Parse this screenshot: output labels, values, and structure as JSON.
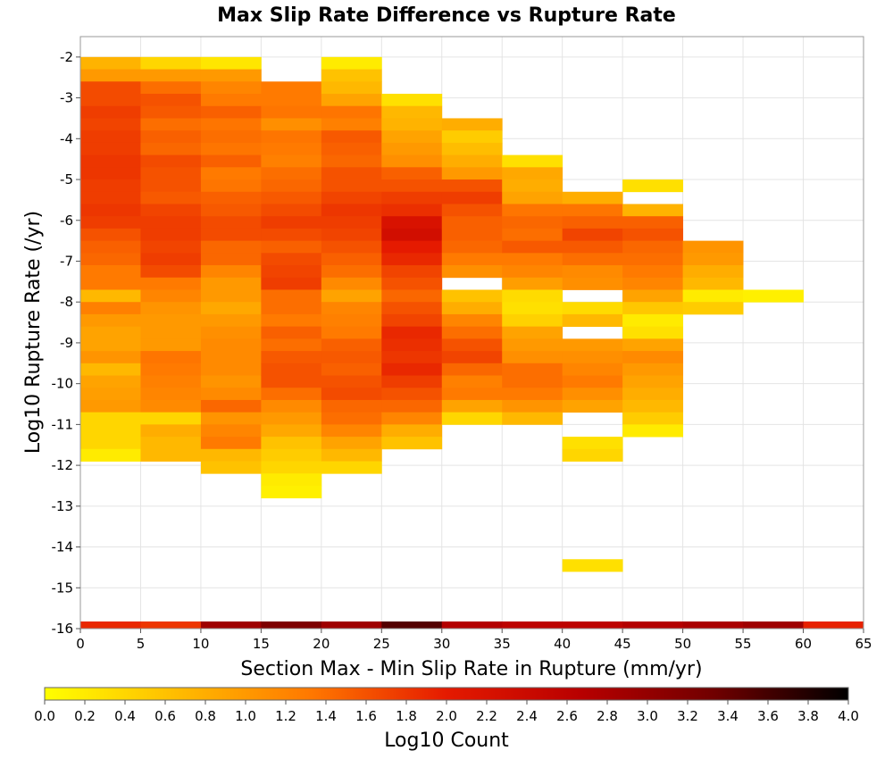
{
  "chart_data": {
    "type": "heatmap",
    "title": "Max Slip Rate Difference vs Rupture Rate",
    "xlabel": "Section Max - Min Slip Rate in Rupture (mm/yr)",
    "ylabel": "Log10 Rupture Rate (/yr)",
    "xlim": [
      0,
      65
    ],
    "ylim": [
      -16,
      -1.5
    ],
    "x_ticks": [
      "0",
      "5",
      "10",
      "15",
      "20",
      "25",
      "30",
      "35",
      "40",
      "45",
      "50",
      "55",
      "60",
      "65"
    ],
    "y_ticks": [
      "-2",
      "-3",
      "-4",
      "-5",
      "-6",
      "-7",
      "-8",
      "-9",
      "-10",
      "-11",
      "-12",
      "-13",
      "-14",
      "-15",
      "-16"
    ],
    "grid": true,
    "x_bin_width": 5,
    "y_bin_height": 0.3,
    "y_bin_start": -2.0,
    "colorbar": {
      "label": "Log10 Count",
      "min": 0.0,
      "max": 4.0,
      "ticks": [
        "0.0",
        "0.2",
        "0.4",
        "0.6",
        "0.8",
        "1.0",
        "1.2",
        "1.4",
        "1.6",
        "1.8",
        "2.0",
        "2.2",
        "2.4",
        "2.6",
        "2.8",
        "3.0",
        "3.2",
        "3.4",
        "3.6",
        "3.8",
        "4.0"
      ],
      "colors": [
        "#ffff00",
        "#ffbb00",
        "#ff7700",
        "#e51a00",
        "#b80000",
        "#700000",
        "#000000"
      ]
    },
    "columns": [
      [
        0.75,
        1.0,
        1.65,
        1.65,
        1.75,
        1.7,
        1.75,
        1.75,
        1.8,
        1.8,
        1.75,
        1.75,
        1.8,
        1.75,
        1.6,
        1.5,
        1.45,
        1.3,
        1.3,
        0.7,
        1.25,
        1.0,
        0.9,
        0.9,
        1.05,
        0.7,
        0.9,
        0.95,
        1.0,
        0.4,
        0.4,
        0.4,
        0.2
      ],
      [
        0.4,
        1.0,
        1.4,
        1.6,
        1.55,
        1.4,
        1.5,
        1.45,
        1.65,
        1.6,
        1.6,
        1.55,
        1.7,
        1.75,
        1.75,
        1.7,
        1.75,
        1.65,
        1.3,
        1.2,
        1.05,
        1.0,
        1.0,
        1.0,
        1.35,
        1.3,
        1.25,
        1.2,
        1.15,
        0.4,
        0.8,
        0.7,
        0.7
      ],
      [
        0.25,
        1.0,
        1.2,
        1.3,
        1.5,
        1.35,
        1.4,
        1.35,
        1.5,
        1.3,
        1.35,
        1.5,
        1.55,
        1.65,
        1.65,
        1.45,
        1.45,
        1.2,
        1.0,
        1.0,
        0.85,
        1.0,
        1.1,
        1.15,
        1.15,
        1.15,
        1.05,
        1.15,
        1.45,
        1.05,
        1.2,
        1.3,
        0.7,
        0.6
      ],
      [
        null,
        null,
        1.3,
        1.3,
        1.35,
        1.1,
        1.35,
        1.3,
        1.25,
        1.4,
        1.45,
        1.55,
        1.65,
        1.75,
        1.65,
        1.5,
        1.65,
        1.7,
        1.75,
        1.4,
        1.4,
        1.3,
        1.5,
        1.4,
        1.55,
        1.6,
        1.6,
        1.4,
        1.15,
        1.0,
        0.85,
        0.6,
        0.5,
        0.4,
        0.2,
        0.15
      ],
      [
        0.2,
        0.6,
        0.7,
        0.9,
        1.35,
        1.25,
        1.55,
        1.5,
        1.45,
        1.6,
        1.6,
        1.7,
        1.8,
        1.75,
        1.7,
        1.6,
        1.5,
        1.4,
        1.15,
        0.9,
        1.2,
        1.25,
        1.3,
        1.5,
        1.55,
        1.5,
        1.6,
        1.65,
        1.45,
        1.4,
        1.2,
        0.9,
        0.7,
        0.4
      ],
      [
        null,
        null,
        null,
        0.3,
        0.7,
        0.75,
        0.9,
        1.0,
        1.1,
        1.5,
        1.6,
        1.75,
        1.85,
        2.2,
        2.3,
        2.0,
        1.9,
        1.7,
        1.6,
        1.45,
        1.6,
        1.7,
        1.9,
        1.85,
        1.8,
        1.9,
        1.75,
        1.6,
        1.45,
        1.2,
        0.8,
        0.6
      ],
      [
        null,
        null,
        null,
        null,
        null,
        0.8,
        0.5,
        0.65,
        0.8,
        1.0,
        1.6,
        1.75,
        1.6,
        1.5,
        1.5,
        1.45,
        1.3,
        1.1,
        null,
        0.6,
        0.8,
        1.2,
        1.4,
        1.6,
        1.7,
        1.45,
        1.25,
        1.3,
        0.9,
        0.4
      ],
      [
        null,
        null,
        null,
        null,
        null,
        null,
        null,
        null,
        0.3,
        0.85,
        0.8,
        0.9,
        1.35,
        1.45,
        1.4,
        1.55,
        1.3,
        1.2,
        0.95,
        0.35,
        0.3,
        0.45,
        0.9,
        1.0,
        1.1,
        1.4,
        1.4,
        1.3,
        1.05,
        0.7
      ],
      [
        null,
        null,
        null,
        null,
        null,
        null,
        null,
        null,
        null,
        null,
        null,
        0.8,
        1.35,
        1.5,
        1.7,
        1.55,
        1.4,
        1.15,
        1.1,
        null,
        0.35,
        0.7,
        null,
        1.0,
        1.1,
        1.2,
        1.3,
        1.1,
        0.9,
        null,
        null,
        0.3,
        0.4,
        null,
        null,
        null,
        null,
        null,
        null,
        null,
        null,
        0.3
      ],
      [
        null,
        null,
        null,
        null,
        null,
        null,
        null,
        null,
        null,
        null,
        0.3,
        null,
        0.75,
        1.5,
        1.6,
        1.45,
        1.4,
        1.3,
        1.2,
        0.9,
        0.55,
        0.2,
        0.3,
        0.9,
        1.15,
        1.0,
        0.9,
        0.8,
        0.7,
        0.5,
        0.2
      ],
      [
        null,
        null,
        null,
        null,
        null,
        null,
        null,
        null,
        null,
        null,
        null,
        null,
        null,
        null,
        null,
        1.05,
        1.0,
        0.8,
        0.7,
        0.2,
        0.5
      ],
      [
        null,
        null,
        null,
        null,
        null,
        null,
        null,
        null,
        null,
        null,
        null,
        null,
        null,
        null,
        null,
        null,
        null,
        null,
        null,
        0.15
      ]
    ],
    "bottom_row": [
      1.9,
      1.8,
      2.9,
      3.2,
      2.9,
      3.5,
      2.7,
      2.6,
      2.6,
      2.7,
      2.8,
      2.9,
      1.95
    ]
  }
}
